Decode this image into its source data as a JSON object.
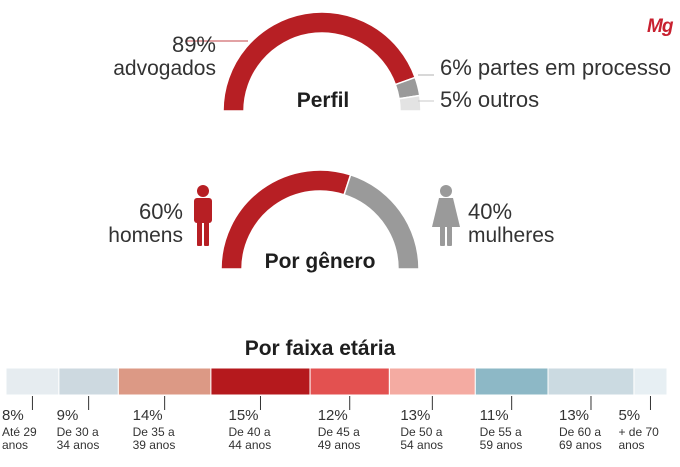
{
  "logo": {
    "text": "Mg",
    "color": "#c8202f"
  },
  "colors": {
    "red": "#b71f24",
    "gray": "#9a9a9a",
    "light": "#e3e3e3",
    "connector": "#c4454a"
  },
  "chart_data": [
    {
      "type": "pie",
      "title": "Perfil",
      "slices": [
        {
          "pct": "89%",
          "label": "advogados",
          "value": 89,
          "color": "#b71f24"
        },
        {
          "pct": "6%",
          "label": "partes em processo",
          "value": 6,
          "color": "#9a9a9a"
        },
        {
          "pct": "5%",
          "label": "outros",
          "value": 5,
          "color": "#e3e3e3"
        }
      ]
    },
    {
      "type": "pie",
      "title": "Por gênero",
      "slices": [
        {
          "pct": "60%",
          "label": "homens",
          "value": 60,
          "color": "#b71f24"
        },
        {
          "pct": "40%",
          "label": "mulheres",
          "value": 40,
          "color": "#9a9a9a"
        }
      ]
    },
    {
      "type": "bar",
      "title": "Por faixa etária",
      "segments": [
        {
          "pct": "8%",
          "value": 8,
          "l1": "Até 29",
          "l2": "anos",
          "color": "#e6ecf0"
        },
        {
          "pct": "9%",
          "value": 9,
          "l1": "De 30 a",
          "l2": "34 anos",
          "color": "#cdd9e0"
        },
        {
          "pct": "14%",
          "value": 14,
          "l1": "De 35 a",
          "l2": "39 anos",
          "color": "#dc9985"
        },
        {
          "pct": "15%",
          "value": 15,
          "l1": "De 40 a",
          "l2": "44 anos",
          "color": "#b5191d"
        },
        {
          "pct": "12%",
          "value": 12,
          "l1": "De 45 a",
          "l2": "49 anos",
          "color": "#e35150"
        },
        {
          "pct": "13%",
          "value": 13,
          "l1": "De 50 a",
          "l2": "54 anos",
          "color": "#f4aba2"
        },
        {
          "pct": "11%",
          "value": 11,
          "l1": "De 55 a",
          "l2": "59 anos",
          "color": "#8db8c6"
        },
        {
          "pct": "13%",
          "value": 13,
          "l1": "De 60 a",
          "l2": "69 anos",
          "color": "#cbdae1"
        },
        {
          "pct": "5%",
          "value": 5,
          "l1": "+ de 70",
          "l2": "anos",
          "color": "#e7eff3"
        }
      ]
    }
  ]
}
